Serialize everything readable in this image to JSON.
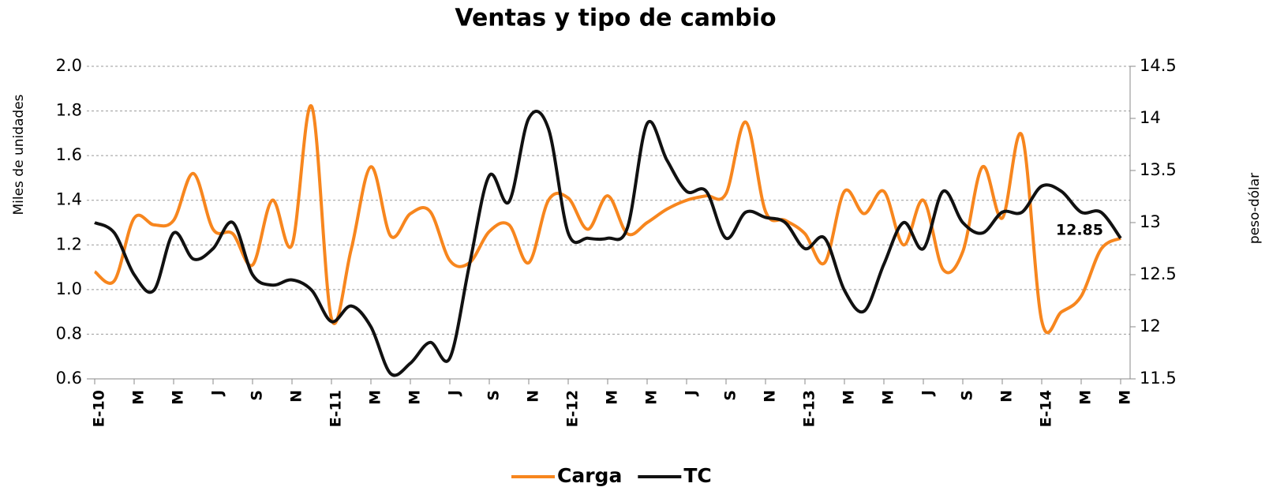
{
  "chart_data": {
    "type": "line",
    "title": "Ventas y tipo de cambio",
    "ylabel": "Miles de unidades",
    "y2label": "peso-dólar",
    "categories": [
      "E-10",
      null,
      "M",
      null,
      "M",
      null,
      "J",
      null,
      "S",
      null,
      "N",
      null,
      "E-11",
      null,
      "M",
      null,
      "M",
      null,
      "J",
      null,
      "S",
      null,
      "N",
      null,
      "E-12",
      null,
      "M",
      null,
      "M",
      null,
      "J",
      null,
      "S",
      null,
      "N",
      null,
      "E-13",
      null,
      "M",
      null,
      "M",
      null,
      "J",
      null,
      "S",
      null,
      "N",
      null,
      "E-14",
      null,
      "M",
      null,
      "M"
    ],
    "series": [
      {
        "name": "Carga",
        "color": "#f7861e",
        "axis": "y",
        "values": [
          1.08,
          1.04,
          1.32,
          1.29,
          1.31,
          1.52,
          1.27,
          1.25,
          1.11,
          1.4,
          1.2,
          1.82,
          0.87,
          1.18,
          1.55,
          1.24,
          1.34,
          1.35,
          1.13,
          1.12,
          1.26,
          1.29,
          1.12,
          1.4,
          1.41,
          1.27,
          1.42,
          1.25,
          1.3,
          1.36,
          1.4,
          1.42,
          1.43,
          1.75,
          1.35,
          1.31,
          1.25,
          1.12,
          1.44,
          1.34,
          1.44,
          1.2,
          1.4,
          1.09,
          1.17,
          1.55,
          1.32,
          1.69,
          0.86,
          0.9,
          0.97,
          1.18,
          1.23
        ]
      },
      {
        "name": "TC",
        "color": "#111111",
        "axis": "y2",
        "values": [
          13.0,
          12.9,
          12.5,
          12.35,
          12.9,
          12.65,
          12.75,
          13.0,
          12.5,
          12.4,
          12.45,
          12.35,
          12.05,
          12.2,
          12.0,
          11.55,
          11.65,
          11.85,
          11.7,
          12.6,
          13.45,
          13.2,
          14.0,
          13.9,
          12.9,
          12.85,
          12.85,
          12.95,
          13.95,
          13.6,
          13.3,
          13.3,
          12.85,
          13.1,
          13.05,
          13.0,
          12.75,
          12.85,
          12.35,
          12.15,
          12.6,
          13.0,
          12.75,
          13.3,
          13.0,
          12.9,
          13.1,
          13.1,
          13.35,
          13.3,
          13.1,
          13.1,
          12.85
        ]
      }
    ],
    "ylim": [
      0.6,
      2.0
    ],
    "yticks": [
      0.6,
      0.8,
      {
        "value": 1.0,
        "label": "1.0"
      },
      1.2,
      1.4,
      1.6,
      1.8,
      {
        "value": 2.0,
        "label": "2.0"
      }
    ],
    "y2lim": [
      11.5,
      14.5
    ],
    "y2ticks": [
      11.5,
      12,
      12.5,
      13,
      13.5,
      14,
      14.5
    ],
    "grid": true,
    "legend": "bottom"
  }
}
